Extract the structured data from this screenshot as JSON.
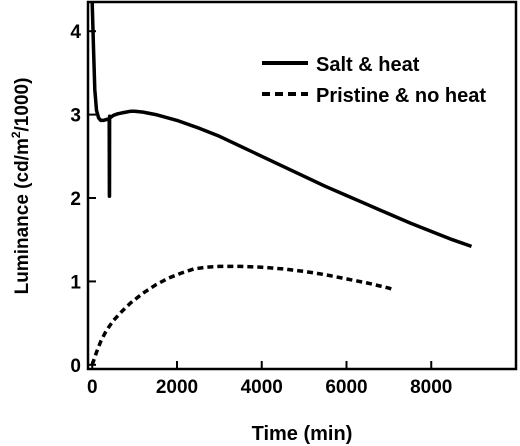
{
  "chart_data": {
    "type": "line",
    "title": "",
    "xlabel": "Time (min)",
    "ylabel_main": "Luminance (cd/m",
    "ylabel_sup": "2",
    "ylabel_tail": "/1000)",
    "xlim": [
      -100,
      10000
    ],
    "ylim": [
      -0.05,
      4.35
    ],
    "xticks": [
      0,
      2000,
      4000,
      6000,
      8000
    ],
    "xtick_labels": [
      "0",
      "2000",
      "4000",
      "6000",
      "8000"
    ],
    "yticks": [
      0,
      1,
      2,
      3,
      4
    ],
    "ytick_labels": [
      "0",
      "1",
      "2",
      "3",
      "4"
    ],
    "grid": false,
    "legend_position": "top-right",
    "series": [
      {
        "name": "Salt & heat",
        "style": "solid",
        "color": "#000000",
        "x": [
          0,
          30,
          60,
          100,
          150,
          200,
          260,
          330,
          400,
          404,
          407,
          410,
          414,
          418,
          500,
          600,
          700,
          800,
          900,
          1000,
          1200,
          1500,
          2000,
          2500,
          3000,
          3500,
          4000,
          4500,
          5000,
          5500,
          6000,
          6500,
          7000,
          7500,
          8000,
          8500,
          8950
        ],
        "y": [
          4.35,
          3.8,
          3.3,
          3.05,
          2.96,
          2.93,
          2.93,
          2.94,
          2.95,
          2.02,
          2.02,
          2.98,
          2.98,
          2.96,
          2.99,
          3.01,
          3.02,
          3.03,
          3.04,
          3.04,
          3.03,
          3.0,
          2.93,
          2.84,
          2.74,
          2.62,
          2.5,
          2.38,
          2.26,
          2.14,
          2.03,
          1.92,
          1.81,
          1.7,
          1.6,
          1.5,
          1.42
        ]
      },
      {
        "name": "Pristine & no heat",
        "style": "dashed",
        "color": "#000000",
        "x": [
          0,
          100,
          200,
          300,
          400,
          500,
          700,
          900,
          1200,
          1500,
          1800,
          2100,
          2400,
          2700,
          3000,
          3500,
          4000,
          4500,
          5000,
          5500,
          6000,
          6500,
          7000,
          7100
        ],
        "y": [
          0.0,
          0.15,
          0.28,
          0.38,
          0.46,
          0.53,
          0.64,
          0.74,
          0.86,
          0.96,
          1.04,
          1.1,
          1.15,
          1.17,
          1.18,
          1.18,
          1.17,
          1.15,
          1.12,
          1.08,
          1.03,
          0.98,
          0.92,
          0.9
        ]
      }
    ]
  }
}
